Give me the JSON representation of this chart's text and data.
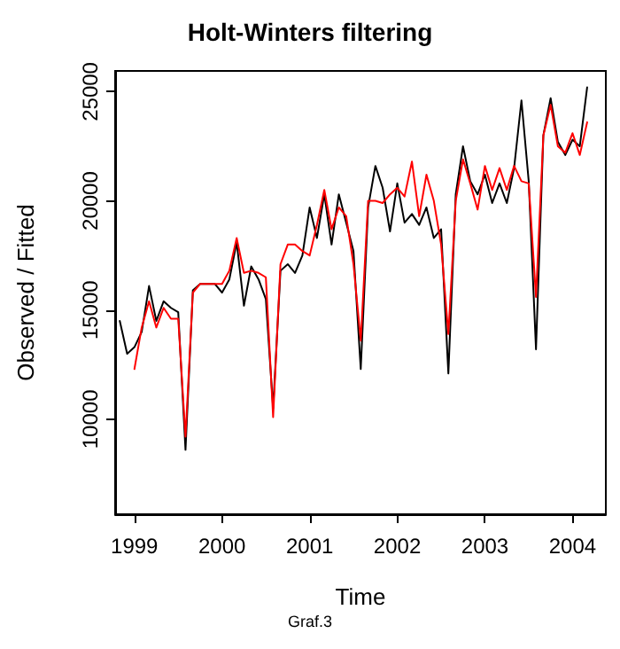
{
  "chart_data": {
    "type": "line",
    "title": "Holt-Winters filtering",
    "xlabel": "Time",
    "ylabel": "Observed / Fitted",
    "annotations": [
      "Graf.3"
    ],
    "xlim": [
      1998.78,
      2004.38
    ],
    "xticks": [
      1999,
      2000,
      2001,
      2002,
      2003,
      2004
    ],
    "ylim": [
      5650,
      25950
    ],
    "yticks": [
      10000,
      15000,
      20000,
      25000
    ],
    "marker": "none",
    "line_style": "solid",
    "series": [
      {
        "color": "#000000",
        "x": [
          1998.833,
          1998.917,
          1999,
          1999.083,
          1999.167,
          1999.25,
          1999.333,
          1999.417,
          1999.5,
          1999.583,
          1999.667,
          1999.75,
          1999.833,
          1999.917,
          2000,
          2000.083,
          2000.167,
          2000.25,
          2000.333,
          2000.417,
          2000.5,
          2000.583,
          2000.667,
          2000.75,
          2000.833,
          2000.917,
          2001,
          2001.083,
          2001.167,
          2001.25,
          2001.333,
          2001.417,
          2001.5,
          2001.583,
          2001.667,
          2001.75,
          2001.833,
          2001.917,
          2002,
          2002.083,
          2002.167,
          2002.25,
          2002.333,
          2002.417,
          2002.5,
          2002.583,
          2002.667,
          2002.75,
          2002.833,
          2002.917,
          2003,
          2003.083,
          2003.167,
          2003.25,
          2003.333,
          2003.417,
          2003.5,
          2003.583,
          2003.667,
          2003.75,
          2003.833,
          2003.917,
          2004,
          2004.083,
          2004.167
        ],
        "values": [
          14500,
          13000,
          13300,
          14000,
          16100,
          14500,
          15400,
          15100,
          14900,
          8600,
          15900,
          16200,
          16200,
          16200,
          15800,
          16400,
          18100,
          15200,
          17000,
          16400,
          15500,
          10500,
          16800,
          17100,
          16700,
          17500,
          19700,
          18300,
          20300,
          18000,
          20300,
          19000,
          17700,
          12300,
          19700,
          21600,
          20600,
          18600,
          20800,
          19000,
          19400,
          18900,
          19700,
          18300,
          18700,
          12100,
          20300,
          22500,
          20900,
          20300,
          21200,
          19900,
          20800,
          19900,
          21500,
          24600,
          20900,
          13200,
          23000,
          24700,
          22700,
          22100,
          22800,
          22500,
          25200
        ]
      },
      {
        "color": "#ff0000",
        "x": [
          1999,
          1999.083,
          1999.167,
          1999.25,
          1999.333,
          1999.417,
          1999.5,
          1999.583,
          1999.667,
          1999.75,
          1999.833,
          1999.917,
          2000,
          2000.083,
          2000.167,
          2000.25,
          2000.333,
          2000.417,
          2000.5,
          2000.583,
          2000.667,
          2000.75,
          2000.833,
          2000.917,
          2001,
          2001.083,
          2001.167,
          2001.25,
          2001.333,
          2001.417,
          2001.5,
          2001.583,
          2001.667,
          2001.75,
          2001.833,
          2001.917,
          2002,
          2002.083,
          2002.167,
          2002.25,
          2002.333,
          2002.417,
          2002.5,
          2002.583,
          2002.667,
          2002.75,
          2002.833,
          2002.917,
          2003,
          2003.083,
          2003.167,
          2003.25,
          2003.333,
          2003.417,
          2003.5,
          2003.583,
          2003.667,
          2003.75,
          2003.833,
          2003.917,
          2004,
          2004.083,
          2004.167
        ],
        "values": [
          12300,
          14200,
          15400,
          14200,
          15100,
          14600,
          14600,
          9200,
          15800,
          16200,
          16200,
          16200,
          16200,
          16800,
          18300,
          16700,
          16800,
          16700,
          16500,
          10100,
          17100,
          18000,
          18000,
          17700,
          17500,
          18900,
          20500,
          18700,
          19700,
          19300,
          17100,
          13600,
          20000,
          20000,
          19900,
          20300,
          20600,
          20200,
          21800,
          19300,
          21200,
          20000,
          18000,
          13900,
          20000,
          21900,
          20800,
          19600,
          21600,
          20500,
          21500,
          20500,
          21600,
          20900,
          20800,
          15600,
          23000,
          24400,
          22500,
          22200,
          23100,
          22100,
          23600
        ]
      }
    ]
  }
}
